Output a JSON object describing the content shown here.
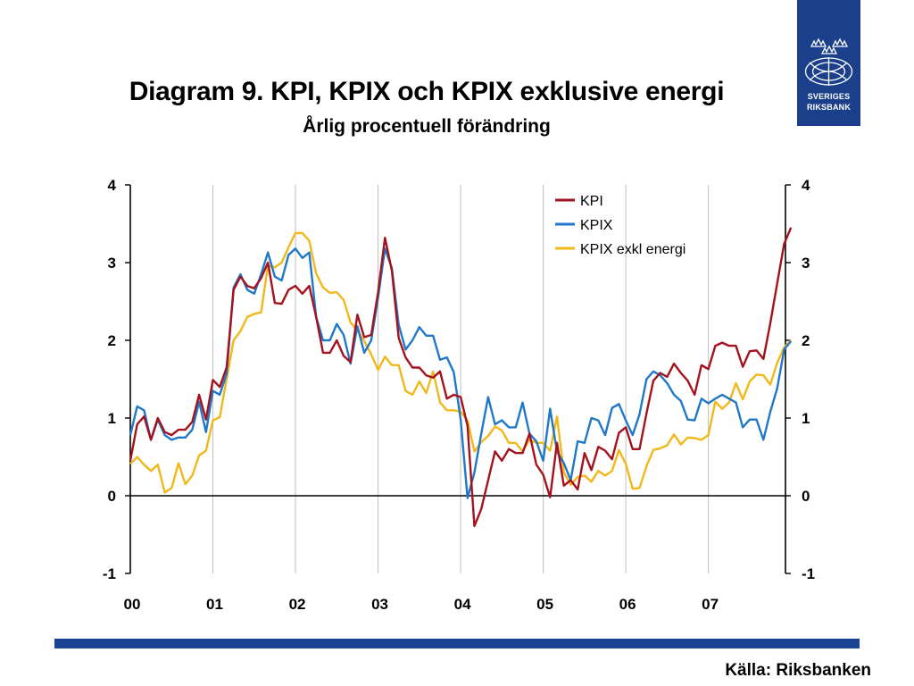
{
  "header": {
    "title": "Diagram 9. KPI, KPIX och KPIX exklusive energi",
    "subtitle": "Årlig procentuell förändring"
  },
  "logo": {
    "line1": "SVERIGES",
    "line2": "RIKSBANK",
    "icon": "riksbank-crown-emblem-icon",
    "color": "#1b3f8b"
  },
  "footer": {
    "source": "Källa: Riksbanken",
    "bar_color": "#1b4394"
  },
  "chart_data": {
    "type": "line",
    "title": "Diagram 9. KPI, KPIX och KPIX exklusive energi",
    "subtitle": "Årlig procentuell förändring",
    "xlabel": "",
    "ylabel": "",
    "x_start": "2000-01",
    "x_end": "2007-11",
    "x_tick_labels": [
      "00",
      "01",
      "02",
      "03",
      "04",
      "05",
      "06",
      "07"
    ],
    "y_ticks": [
      -1,
      0,
      1,
      2,
      3,
      4
    ],
    "ylim": [
      -1,
      4
    ],
    "y_axis_both_sides": true,
    "grid": "vertical",
    "legend_position": "top-right",
    "series": [
      {
        "name": "KPI",
        "color": "#a3121d",
        "values": [
          0.45,
          0.92,
          1.02,
          0.72,
          1.0,
          0.82,
          0.78,
          0.85,
          0.85,
          0.95,
          1.3,
          0.98,
          1.49,
          1.4,
          1.65,
          2.65,
          2.82,
          2.7,
          2.67,
          2.8,
          3.0,
          2.48,
          2.47,
          2.65,
          2.7,
          2.6,
          2.7,
          2.3,
          1.84,
          1.84,
          2.0,
          1.8,
          1.72,
          2.33,
          2.04,
          2.07,
          2.62,
          3.32,
          2.9,
          2.03,
          1.78,
          1.65,
          1.65,
          1.55,
          1.52,
          1.6,
          1.25,
          1.3,
          1.27,
          0.9,
          -0.39,
          -0.17,
          0.2,
          0.57,
          0.45,
          0.6,
          0.55,
          0.55,
          0.8,
          0.4,
          0.27,
          -0.02,
          0.68,
          0.13,
          0.2,
          0.08,
          0.55,
          0.33,
          0.63,
          0.58,
          0.47,
          0.81,
          0.88,
          0.6,
          0.6,
          1.06,
          1.48,
          1.58,
          1.53,
          1.7,
          1.58,
          1.48,
          1.3,
          1.68,
          1.63,
          1.93,
          1.97,
          1.93,
          1.93,
          1.66,
          1.86,
          1.87,
          1.76,
          2.22,
          2.73,
          3.24,
          3.45
        ]
      },
      {
        "name": "KPIX",
        "color": "#1f78c8",
        "values": [
          0.78,
          1.15,
          1.1,
          0.72,
          0.98,
          0.78,
          0.72,
          0.75,
          0.75,
          0.85,
          1.21,
          0.82,
          1.35,
          1.3,
          1.57,
          2.68,
          2.85,
          2.65,
          2.6,
          2.85,
          3.13,
          2.82,
          2.77,
          3.1,
          3.18,
          3.06,
          3.13,
          2.3,
          2.0,
          2.0,
          2.21,
          2.07,
          1.7,
          2.18,
          1.84,
          2.0,
          2.55,
          3.18,
          2.93,
          2.2,
          1.88,
          2.0,
          2.17,
          2.06,
          2.06,
          1.75,
          1.78,
          1.59,
          0.98,
          -0.03,
          0.3,
          0.8,
          1.27,
          0.92,
          0.97,
          0.88,
          0.88,
          1.2,
          0.8,
          0.7,
          0.45,
          1.12,
          0.57,
          0.42,
          0.2,
          0.7,
          0.68,
          1.0,
          0.97,
          0.78,
          1.13,
          1.18,
          0.97,
          0.78,
          1.05,
          1.5,
          1.6,
          1.55,
          1.45,
          1.3,
          1.22,
          0.98,
          0.97,
          1.25,
          1.19,
          1.25,
          1.3,
          1.25,
          1.2,
          0.88,
          0.98,
          0.98,
          0.72,
          1.08,
          1.38,
          1.88,
          1.99
        ]
      },
      {
        "name": "KPIX exkl energi",
        "color": "#f2b81a",
        "values": [
          0.41,
          0.5,
          0.4,
          0.32,
          0.4,
          0.04,
          0.1,
          0.42,
          0.15,
          0.26,
          0.52,
          0.58,
          0.97,
          1.01,
          1.5,
          2.0,
          2.12,
          2.3,
          2.34,
          2.36,
          2.96,
          2.94,
          3.0,
          3.2,
          3.38,
          3.38,
          3.28,
          2.86,
          2.68,
          2.61,
          2.62,
          2.52,
          2.23,
          2.13,
          1.99,
          1.82,
          1.62,
          1.79,
          1.68,
          1.68,
          1.35,
          1.3,
          1.47,
          1.32,
          1.6,
          1.2,
          1.1,
          1.1,
          1.08,
          0.97,
          0.57,
          0.69,
          0.77,
          0.89,
          0.84,
          0.68,
          0.68,
          0.57,
          0.72,
          0.68,
          0.68,
          0.58,
          1.02,
          0.3,
          0.14,
          0.24,
          0.26,
          0.18,
          0.32,
          0.26,
          0.32,
          0.59,
          0.41,
          0.09,
          0.1,
          0.38,
          0.59,
          0.61,
          0.65,
          0.79,
          0.66,
          0.75,
          0.74,
          0.72,
          0.78,
          1.21,
          1.12,
          1.2,
          1.45,
          1.24,
          1.47,
          1.56,
          1.55,
          1.43,
          1.71,
          1.91,
          2.0
        ]
      }
    ]
  }
}
